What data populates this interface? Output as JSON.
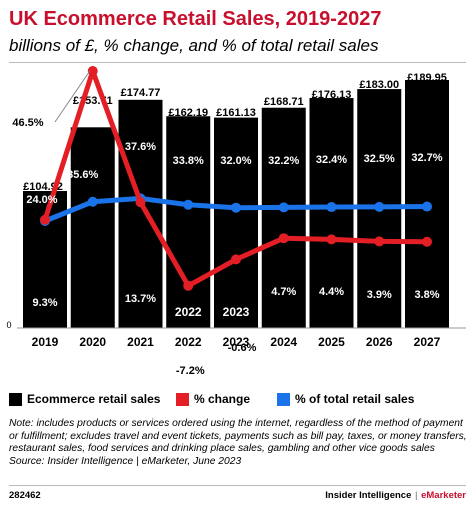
{
  "header": {
    "title": "UK Ecommerce Retail Sales, 2019-2027",
    "subtitle": "billions of £, % change, and % of total retail sales"
  },
  "chart_data": {
    "type": "bar",
    "categories": [
      "2019",
      "2020",
      "2021",
      "2022",
      "2023",
      "2024",
      "2025",
      "2026",
      "2027"
    ],
    "ylim_bars": [
      0,
      189.95
    ],
    "zero_label": "0",
    "series": [
      {
        "name": "Ecommerce retail sales",
        "type": "bar",
        "color": "#000000",
        "values": [
          104.92,
          153.71,
          174.77,
          162.19,
          161.13,
          168.71,
          176.13,
          183.0,
          189.95
        ],
        "labels": [
          "£104.92",
          "£153.71",
          "£174.77",
          "£162.19",
          "£161.13",
          "£168.71",
          "£176.13",
          "£183.00",
          "£189.95"
        ]
      },
      {
        "name": "% change",
        "type": "line",
        "color": "#e31e24",
        "values": [
          9.3,
          46.5,
          13.7,
          -7.2,
          -0.6,
          4.7,
          4.4,
          3.9,
          3.8
        ],
        "labels": [
          "9.3%",
          "46.5%",
          "13.7%",
          "-7.2%",
          "-0.6%",
          "4.7%",
          "4.4%",
          "3.9%",
          "3.8%"
        ]
      },
      {
        "name": "% of total retail sales",
        "type": "line",
        "color": "#1a73e8",
        "values": [
          24.0,
          35.6,
          37.6,
          33.8,
          32.0,
          32.2,
          32.4,
          32.5,
          32.7
        ],
        "labels": [
          "24.0%",
          "35.6%",
          "37.6%",
          "33.8%",
          "32.0%",
          "32.2%",
          "32.4%",
          "32.5%",
          "32.7%"
        ]
      }
    ],
    "inline_category_labels": [
      "2022",
      "2023"
    ]
  },
  "legend": [
    {
      "label": "Ecommerce retail sales",
      "color": "#000000"
    },
    {
      "label": "% change",
      "color": "#e31e24"
    },
    {
      "label": "% of total retail sales",
      "color": "#1a73e8"
    }
  ],
  "note": "Note: includes products or services ordered using the internet, regardless of the method of payment or fulfillment; excludes travel and event tickets, payments such as bill pay, taxes, or money transfers, restaurant sales, food services and drinking place sales, gambling and other vice goods sales",
  "source": "Source: Insider Intelligence | eMarketer, June 2023",
  "footer": {
    "chart_id": "282462",
    "brand_left": "Insider Intelligence",
    "brand_sep": "|",
    "brand_right": "eMarketer"
  }
}
